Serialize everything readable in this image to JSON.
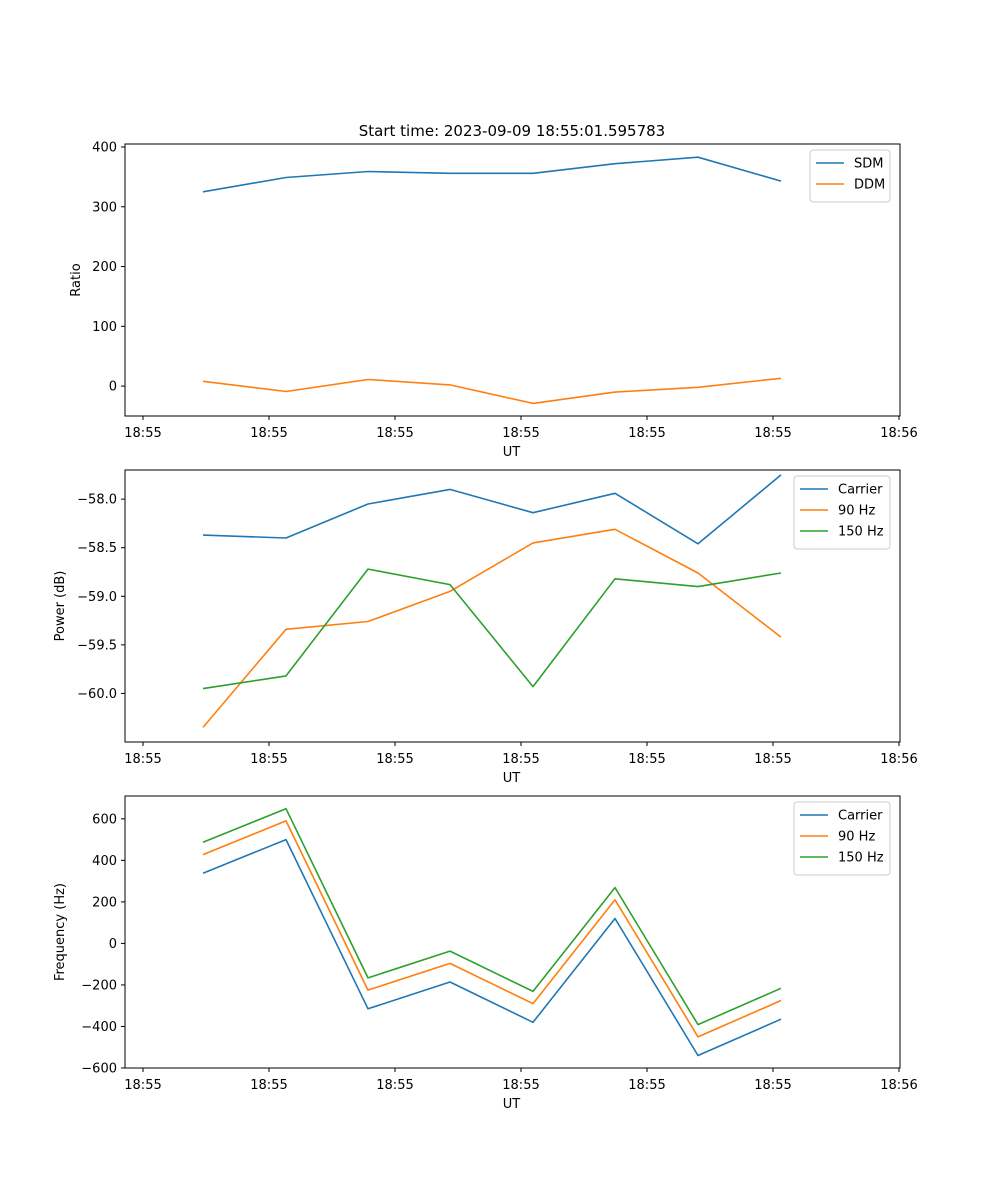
{
  "figure_title": "Start time: 2023-09-09 18:55:01.595783",
  "chart_data": [
    {
      "type": "line",
      "xlabel": "UT",
      "ylabel": "Ratio",
      "xticks": [
        "18:55",
        "18:55",
        "18:55",
        "18:55",
        "18:55",
        "18:55",
        "18:56"
      ],
      "yticks": [
        0,
        100,
        200,
        300,
        400
      ],
      "ylim": [
        -50,
        405
      ],
      "legend_position": "upper right",
      "x": [
        1,
        2,
        3,
        4,
        5,
        6,
        7,
        8
      ],
      "series": [
        {
          "name": "SDM",
          "color": "#1f77b4",
          "values": [
            325,
            349,
            359,
            356,
            356,
            372,
            383,
            343
          ]
        },
        {
          "name": "DDM",
          "color": "#ff7f0e",
          "values": [
            8,
            -9,
            11,
            2,
            -29,
            -10,
            -2,
            13
          ]
        }
      ]
    },
    {
      "type": "line",
      "xlabel": "UT",
      "ylabel": "Power (dB)",
      "xticks": [
        "18:55",
        "18:55",
        "18:55",
        "18:55",
        "18:55",
        "18:55",
        "18:56"
      ],
      "yticks": [
        "−60.0",
        "−59.5",
        "−59.0",
        "−58.5",
        "−58.0"
      ],
      "ytick_values": [
        -60.0,
        -59.5,
        -59.0,
        -58.5,
        -58.0
      ],
      "ylim": [
        -60.5,
        -57.7
      ],
      "legend_position": "upper right",
      "x": [
        1,
        2,
        3,
        4,
        5,
        6,
        7,
        8
      ],
      "series": [
        {
          "name": "Carrier",
          "color": "#1f77b4",
          "values": [
            -58.37,
            -58.4,
            -58.05,
            -57.9,
            -58.14,
            -57.94,
            -58.46,
            -57.75
          ]
        },
        {
          "name": "90 Hz",
          "color": "#ff7f0e",
          "values": [
            -60.35,
            -59.34,
            -59.26,
            -58.95,
            -58.45,
            -58.31,
            -58.76,
            -59.42
          ]
        },
        {
          "name": "150 Hz",
          "color": "#2ca02c",
          "values": [
            -59.95,
            -59.82,
            -58.72,
            -58.88,
            -59.93,
            -58.82,
            -58.9,
            -58.76
          ]
        }
      ]
    },
    {
      "type": "line",
      "xlabel": "UT",
      "ylabel": "Frequency (Hz)",
      "xticks": [
        "18:55",
        "18:55",
        "18:55",
        "18:55",
        "18:55",
        "18:55",
        "18:56"
      ],
      "yticks": [
        "−600",
        "−400",
        "−200",
        "0",
        "200",
        "400",
        "600"
      ],
      "ytick_values": [
        -600,
        -400,
        -200,
        0,
        200,
        400,
        600
      ],
      "ylim": [
        -600,
        710
      ],
      "legend_position": "upper right",
      "x": [
        1,
        2,
        3,
        4,
        5,
        6,
        7,
        8
      ],
      "series": [
        {
          "name": "Carrier",
          "color": "#1f77b4",
          "values": [
            338,
            500,
            -315,
            -186,
            -380,
            120,
            -540,
            -365
          ]
        },
        {
          "name": "90 Hz",
          "color": "#ff7f0e",
          "values": [
            428,
            590,
            -225,
            -96,
            -290,
            210,
            -450,
            -275
          ]
        },
        {
          "name": "150 Hz",
          "color": "#2ca02c",
          "values": [
            487,
            649,
            -166,
            -37,
            -231,
            269,
            -391,
            -216
          ]
        }
      ]
    }
  ]
}
